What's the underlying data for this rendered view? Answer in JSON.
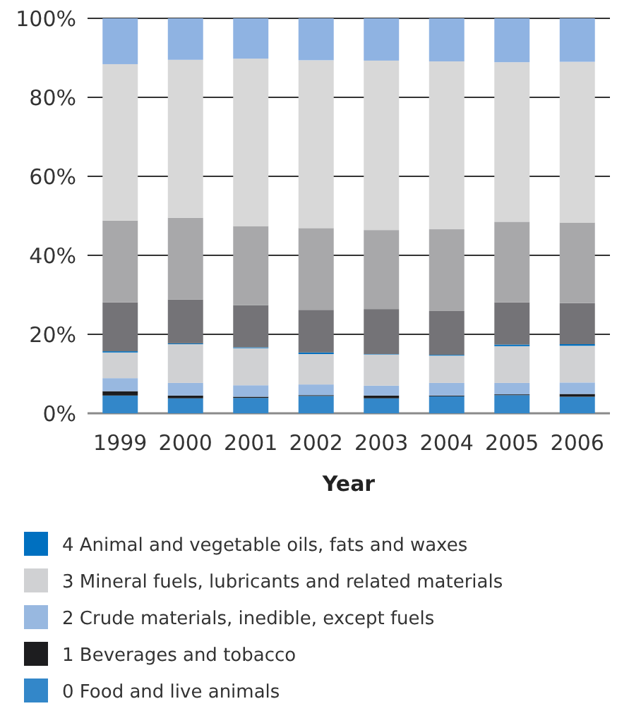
{
  "chart_data": {
    "type": "bar",
    "stacked": true,
    "xlabel": "Year",
    "categories": [
      "1999",
      "2000",
      "2001",
      "2002",
      "2003",
      "2004",
      "2005",
      "2006"
    ],
    "series": [
      {
        "name": "0 Food and live animals",
        "color": "#3387c9",
        "values": [
          4.5,
          3.8,
          3.9,
          4.4,
          3.8,
          4.3,
          4.6,
          4.2
        ]
      },
      {
        "name": "1 Beverages and tobacco",
        "color": "#1d1d1f",
        "values": [
          1.1,
          0.7,
          0.3,
          0.2,
          0.7,
          0.2,
          0.2,
          0.7
        ]
      },
      {
        "name": "2 Crude materials, inedible, except fuels",
        "color": "#98b8e0",
        "values": [
          3.3,
          3.2,
          2.9,
          2.7,
          2.5,
          3.2,
          2.9,
          2.9
        ]
      },
      {
        "name": "3 Mineral fuels, lubricants and related materials",
        "color": "#d0d1d3",
        "values": [
          6.5,
          9.8,
          9.4,
          7.7,
          7.9,
          6.9,
          9.3,
          9.3
        ]
      },
      {
        "name": "4 Animal and vegetable oils, fats and waxes",
        "color": "#0070c0",
        "values": [
          0.3,
          0.2,
          0.2,
          0.4,
          0.1,
          0.2,
          0.4,
          0.4
        ]
      },
      {
        "color": "#747377",
        "values": [
          12.4,
          11.1,
          10.7,
          10.8,
          11.4,
          11.1,
          10.7,
          10.4
        ]
      },
      {
        "color": "#a8a8aa",
        "values": [
          20.7,
          20.7,
          20.0,
          20.7,
          20.0,
          20.7,
          20.4,
          20.4
        ]
      },
      {
        "color": "#d8d8d8",
        "values": [
          39.6,
          40.0,
          42.4,
          42.5,
          42.9,
          42.5,
          40.4,
          40.7
        ]
      },
      {
        "color": "#8fb3e2",
        "values": [
          11.6,
          10.5,
          10.2,
          10.6,
          10.7,
          10.9,
          11.1,
          11.0
        ]
      }
    ],
    "ylim": [
      0,
      100
    ],
    "yticks": [
      {
        "value": 0,
        "label": "0%"
      },
      {
        "value": 20,
        "label": "20%"
      },
      {
        "value": 40,
        "label": "40%"
      },
      {
        "value": 60,
        "label": "60%"
      },
      {
        "value": 80,
        "label": "80%"
      },
      {
        "value": 100,
        "label": "100%"
      }
    ],
    "grid": "y",
    "legend": "bottom"
  }
}
